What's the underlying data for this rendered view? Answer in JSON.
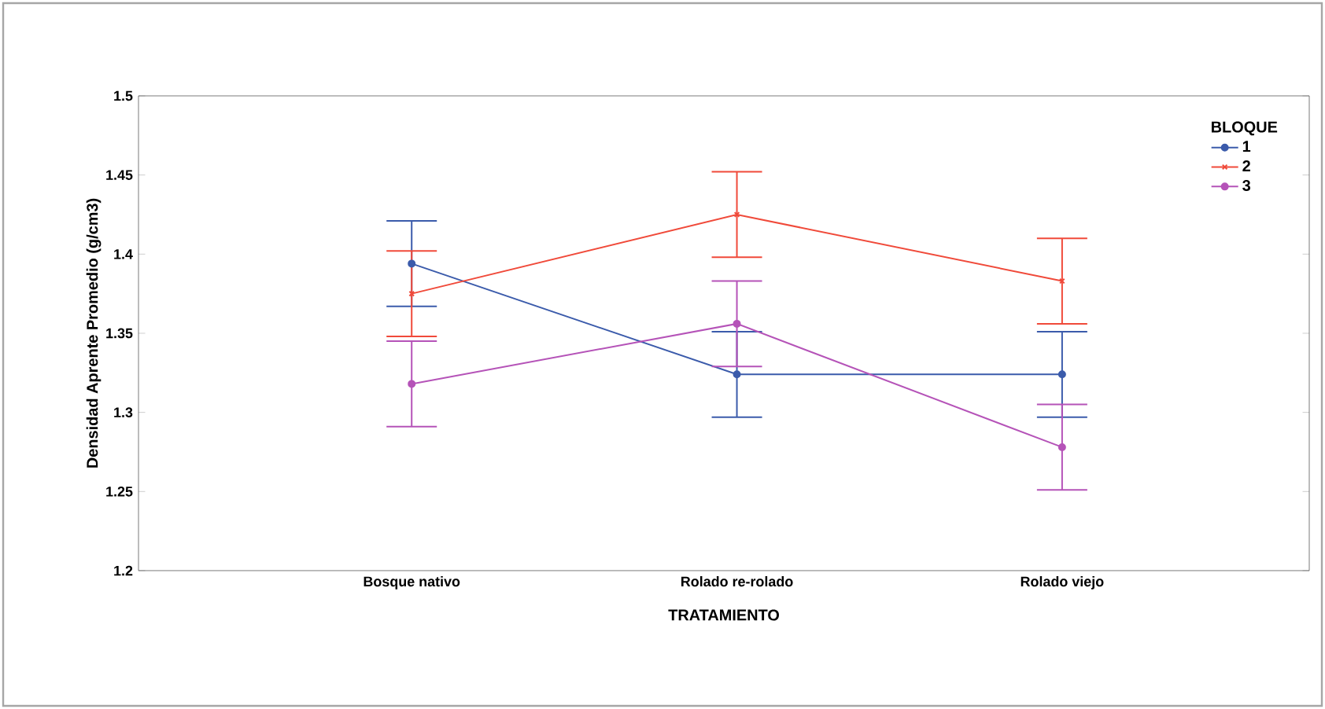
{
  "chart_data": {
    "type": "line",
    "xlabel": "TRATAMIENTO",
    "ylabel": "Densidad Aprente Promedio (g/cm3)",
    "legend_title": "BLOQUE",
    "categories": [
      "Bosque nativo",
      "Rolado re-rolado",
      "Rolado viejo"
    ],
    "series": [
      {
        "name": "1",
        "color": "#3b5bab",
        "marker": "circle",
        "values": [
          1.394,
          1.324,
          1.324
        ],
        "errors": [
          0.027,
          0.027,
          0.027
        ]
      },
      {
        "name": "2",
        "color": "#f04a3a",
        "marker": "cross",
        "values": [
          1.375,
          1.425,
          1.383
        ],
        "errors": [
          0.027,
          0.027,
          0.027
        ]
      },
      {
        "name": "3",
        "color": "#b553b8",
        "marker": "circle",
        "values": [
          1.318,
          1.356,
          1.278
        ],
        "errors": [
          0.027,
          0.027,
          0.027
        ]
      }
    ],
    "ylim": [
      1.2,
      1.5
    ],
    "yticks": [
      1.2,
      1.25,
      1.3,
      1.35,
      1.4,
      1.45,
      1.5
    ],
    "grid": false,
    "legend": "top right",
    "line_style": "solid"
  }
}
